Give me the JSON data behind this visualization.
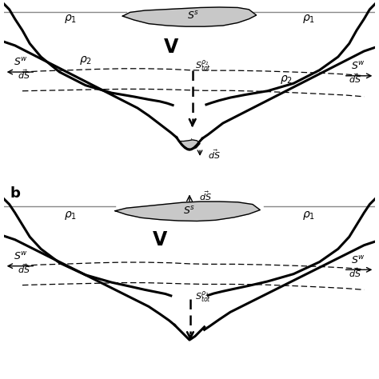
{
  "figsize": [
    4.74,
    4.74
  ],
  "dpi": 100,
  "bg_color": "white",
  "gray_fill": "#c8c8c8",
  "lw_thick": 2.2,
  "lw_thin": 1.0,
  "lw_dashed": 0.9
}
